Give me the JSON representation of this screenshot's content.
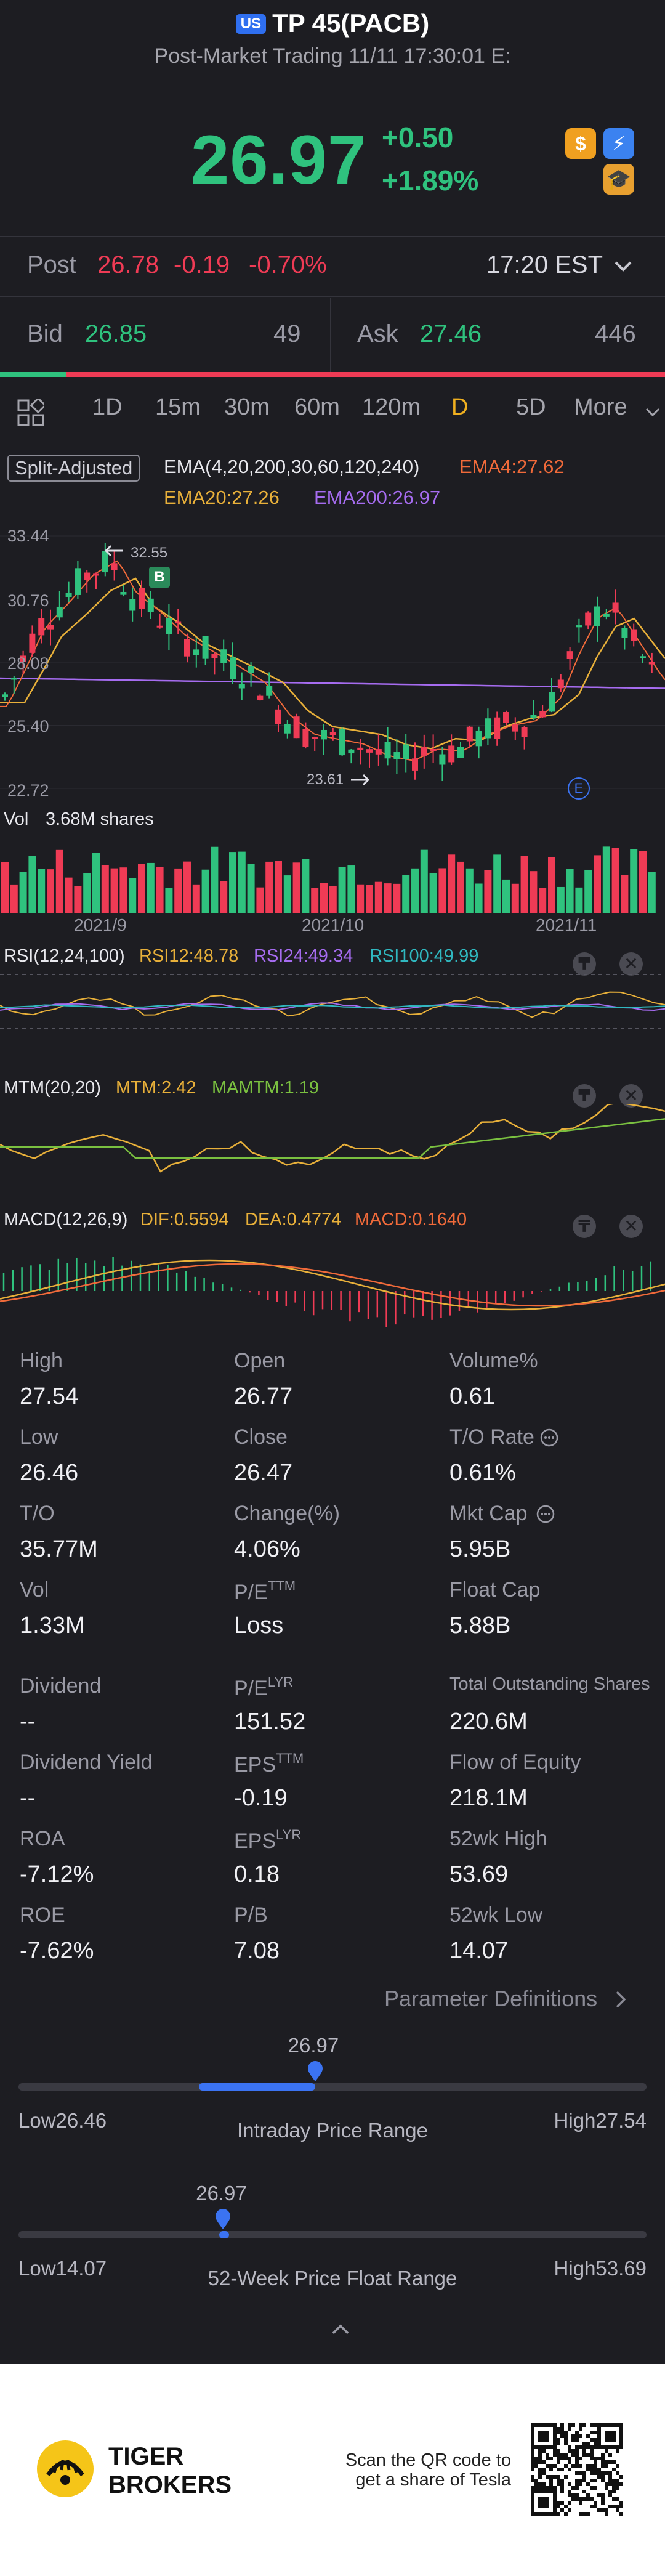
{
  "header": {
    "market_badge": "US",
    "title": "TP 45(PACB)",
    "subtitle": "Post-Market Trading 11/11 17:30:01 E:"
  },
  "quote": {
    "price": "26.97",
    "change": "+0.50",
    "change_pct": "+1.89%"
  },
  "post": {
    "label": "Post",
    "price": "26.78",
    "change": "-0.19",
    "change_pct": "-0.70%",
    "time": "17:20 EST"
  },
  "bidask": {
    "bid_label": "Bid",
    "bid_price": "26.85",
    "bid_size": "49",
    "ask_label": "Ask",
    "ask_price": "27.46",
    "ask_size": "446",
    "bid_ratio": 0.1
  },
  "tabs": [
    "1D",
    "15m",
    "30m",
    "60m",
    "120m",
    "D",
    "5D",
    "More"
  ],
  "active_tab": "D",
  "chart": {
    "adjust_chip": "Split-Adjusted",
    "ema_title": "EMA(4,20,200,30,60,120,240)",
    "ema4": "EMA4:27.62",
    "ema20": "EMA20:27.26",
    "ema200": "EMA200:26.97",
    "y_labels": [
      "33.44",
      "30.76",
      "28.08",
      "25.40",
      "22.72"
    ],
    "high_marker": "32.55",
    "low_marker": "23.61",
    "b_marker": "B",
    "e_marker": "E",
    "vol_label": "Vol",
    "vol_value": "3.68M shares",
    "x_labels": [
      "2021/9",
      "2021/10",
      "2021/11"
    ],
    "rsi_title": "RSI(12,24,100)",
    "rsi12": "RSI12:48.78",
    "rsi24": "RSI24:49.34",
    "rsi100": "RSI100:49.99",
    "mtm_title": "MTM(20,20)",
    "mtm": "MTM:2.42",
    "mamtm": "MAMTM:1.19",
    "macd_title": "MACD(12,26,9)",
    "dif": "DIF:0.5594",
    "dea": "DEA:0.4774",
    "macd": "MACD:0.1640"
  },
  "chart_data": {
    "type": "candlestick",
    "x_labels": [
      "2021/9",
      "2021/10",
      "2021/11"
    ],
    "ylim": [
      22.72,
      33.44
    ],
    "y_ticks": [
      33.44,
      30.76,
      28.08,
      25.4,
      22.72
    ],
    "period_high": 32.55,
    "period_low": 23.61,
    "last_close": 26.97,
    "indicators": {
      "EMA4": 27.62,
      "EMA20": 27.26,
      "EMA200": 26.97,
      "RSI12": 48.78,
      "RSI24": 49.34,
      "RSI100": 49.99,
      "MTM": 2.42,
      "MAMTM": 1.19,
      "DIF": 0.5594,
      "DEA": 0.4774,
      "MACD": 0.164
    },
    "volume_last": "3.68M shares"
  },
  "stats": [
    {
      "label": "High",
      "value": "27.54"
    },
    {
      "label": "Open",
      "value": "26.77"
    },
    {
      "label": "Volume%",
      "value": "0.61"
    },
    {
      "label": "Low",
      "value": "26.46"
    },
    {
      "label": "Close",
      "value": "26.47"
    },
    {
      "label": "T/O Rate",
      "value": "0.61%"
    },
    {
      "label": "T/O",
      "value": "35.77M"
    },
    {
      "label": "Change(%)",
      "value": "4.06%"
    },
    {
      "label": "Mkt Cap",
      "value": "5.95B"
    },
    {
      "label": "Vol",
      "value": "1.33M"
    },
    {
      "label": "P/E",
      "sup": "TTM",
      "value": "Loss"
    },
    {
      "label": "Float Cap",
      "value": "5.88B"
    },
    {
      "label": "Dividend",
      "value": "--"
    },
    {
      "label": "P/E",
      "sup": "LYR",
      "value": "151.52"
    },
    {
      "label": "Total Outstanding Shares",
      "value": "220.6M"
    },
    {
      "label": "Dividend Yield",
      "value": "--"
    },
    {
      "label": "EPS",
      "sup": "TTM",
      "value": "-0.19"
    },
    {
      "label": "Flow of Equity",
      "value": "218.1M"
    },
    {
      "label": "ROA",
      "value": "-7.12%"
    },
    {
      "label": "EPS",
      "sup": "LYR",
      "value": "0.18"
    },
    {
      "label": "52wk High",
      "value": "53.69"
    },
    {
      "label": "ROE",
      "value": "-7.62%"
    },
    {
      "label": "P/B",
      "value": "7.08"
    },
    {
      "label": "52wk Low",
      "value": "14.07"
    }
  ],
  "param_link": "Parameter Definitions",
  "intraday": {
    "current": "26.97",
    "low": "Low26.46",
    "high": "High27.54",
    "label": "Intraday Price Range",
    "low_num": 26.46,
    "high_num": 27.54,
    "open_num": 26.77,
    "current_num": 26.97
  },
  "week52": {
    "current": "26.97",
    "low": "Low14.07",
    "high": "High53.69",
    "label": "52-Week Price Float Range",
    "low_num": 14.07,
    "high_num": 53.69,
    "current_num": 26.97
  },
  "footer": {
    "brand_line1": "TIGER",
    "brand_line2": "BROKERS",
    "qr_text_line1": "Scan the QR code to",
    "qr_text_line2": "get a share of Tesla"
  },
  "colors": {
    "up": "#2fc27e",
    "down": "#ef3b55",
    "accent": "#3b73f2",
    "ema4": "#f06a3a",
    "ema20": "#e8b03a",
    "ema200": "#a66cf0"
  }
}
